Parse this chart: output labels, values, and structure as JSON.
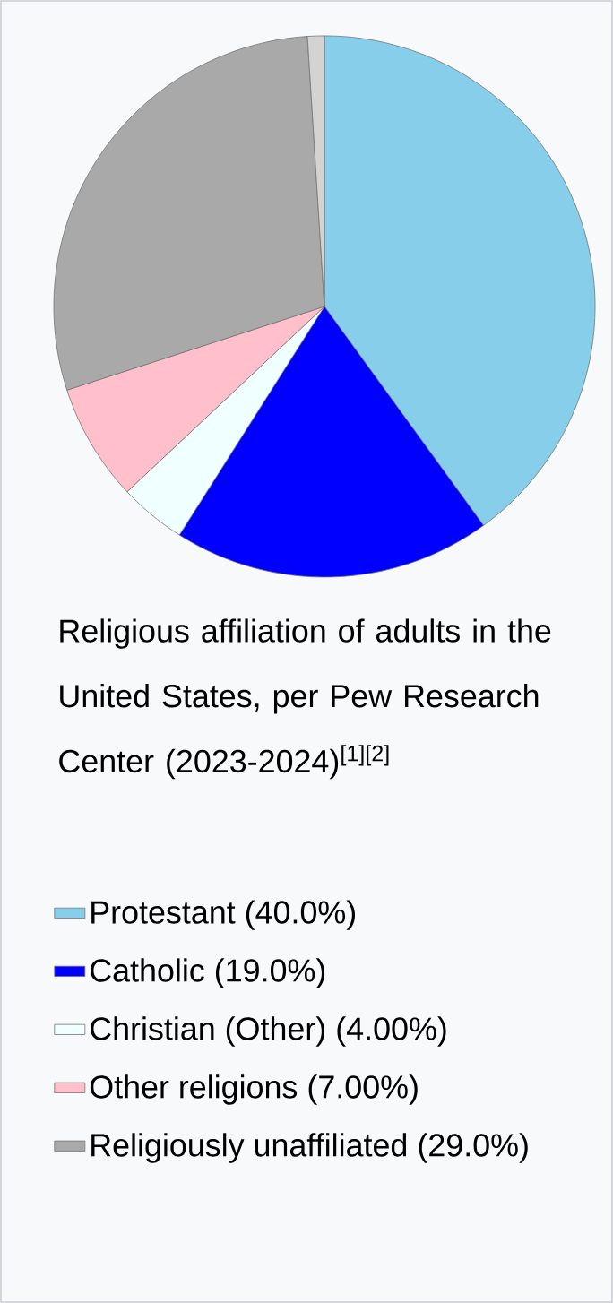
{
  "chart_data": {
    "type": "pie",
    "title": "Religious affiliation of adults in the United States, per Pew Research Center (2023-2024)$^{[1][2]}$",
    "categories": [
      "Protestant",
      "Catholic",
      "Christian (Other)",
      "Other religions",
      "Religiously unaffiliated",
      null
    ],
    "values": [
      40.0,
      19.0,
      4.0,
      7.0,
      29.0,
      1.0
    ],
    "colors": [
      "#87ceeb",
      "#0000ff",
      "#f0ffff",
      "#ffc0cb",
      "#a9a9a9",
      "#d3d3d3"
    ],
    "value_labels": [
      "(40.0%)",
      "(19.0%)",
      "(4.00%)",
      "(7.00%)",
      "(29.0%)",
      null
    ],
    "legend": "bottom"
  }
}
